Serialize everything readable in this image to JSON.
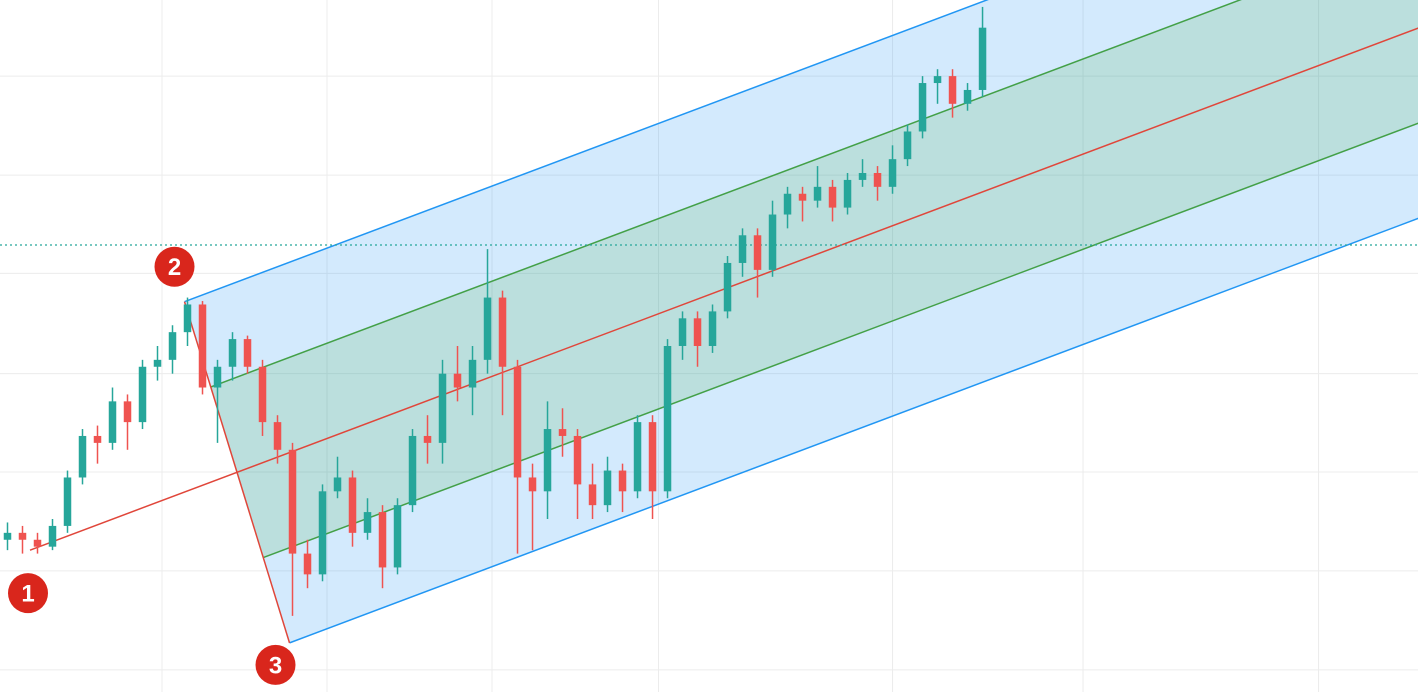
{
  "chart_data": {
    "type": "candlestick",
    "xlim": [
      -0.5,
      94.03
    ],
    "ylim": [
      0,
      100
    ],
    "xticks": [
      10.3,
      21.3,
      32.3,
      43.4,
      59.0,
      71.7,
      87.4
    ],
    "yticks": [
      3.2,
      17.5,
      31.8,
      46,
      60.5,
      74.7,
      89
    ],
    "grid": true,
    "up_color": "#26a69a",
    "down_color": "#ef5350",
    "price_line": {
      "value": 64.6,
      "color": "#26a69a"
    },
    "open": [
      22,
      23,
      22,
      21,
      24,
      31,
      37,
      36,
      42,
      39,
      47,
      48,
      52,
      56,
      44,
      47,
      51,
      47,
      39,
      35,
      20,
      17,
      29,
      31,
      23,
      26,
      18,
      27,
      37,
      36,
      46,
      44,
      48,
      57,
      47,
      31,
      29,
      38,
      37,
      30,
      27,
      32,
      29,
      39,
      29,
      50,
      54,
      50,
      55,
      62,
      66,
      61,
      69,
      72,
      71,
      73,
      70,
      74,
      75,
      73,
      77,
      81,
      88,
      89,
      85,
      87
    ],
    "high": [
      24.5,
      24,
      23,
      25,
      32,
      38,
      38.5,
      44,
      43,
      48,
      50,
      53,
      57,
      56.5,
      48,
      52,
      51.5,
      48,
      40,
      36,
      22,
      30,
      34,
      32,
      28,
      27,
      28,
      38,
      40,
      48,
      50,
      50,
      64,
      58,
      48,
      33,
      42,
      41,
      38,
      33,
      34,
      33,
      40,
      40,
      51,
      55,
      55,
      56,
      63,
      67,
      67,
      71,
      73,
      73,
      76,
      74,
      75,
      77,
      76,
      79,
      82,
      89,
      90,
      90,
      88,
      99
    ],
    "low": [
      20.5,
      20,
      20,
      20.5,
      23,
      30,
      33,
      35,
      35,
      38,
      45,
      46,
      50,
      43,
      36,
      45,
      46,
      37,
      33,
      11,
      15,
      16,
      28,
      21,
      22,
      15,
      17,
      26,
      33,
      33,
      42,
      40,
      46,
      40,
      20,
      20.5,
      25,
      34,
      25,
      25,
      26,
      26,
      28,
      25,
      28,
      48,
      47,
      49,
      54,
      60,
      57,
      60,
      67,
      68,
      70,
      68,
      69,
      73,
      71,
      72,
      76,
      80,
      85,
      83,
      84,
      86
    ],
    "close": [
      23,
      22,
      21,
      24,
      31,
      37,
      36,
      42,
      39,
      47,
      48,
      52,
      56,
      44,
      47,
      51,
      47,
      39,
      35,
      20,
      17,
      29,
      31,
      23,
      26,
      18,
      27,
      37,
      36,
      46,
      44,
      48,
      57,
      47,
      31,
      29,
      38,
      37,
      30,
      27,
      32,
      29,
      39,
      29,
      50,
      54,
      50,
      55,
      62,
      66,
      61,
      69,
      72,
      71,
      73,
      70,
      74,
      75,
      73,
      77,
      81,
      88,
      89,
      85,
      87,
      96
    ],
    "pitchfork": {
      "points": [
        {
          "x": 1.5,
          "y": 20.5,
          "label": "1"
        },
        {
          "x": 11.8,
          "y": 56.4,
          "label": "2"
        },
        {
          "x": 18.8,
          "y": 7.1,
          "label": "3"
        }
      ],
      "median_color": "#e0463a",
      "outer_color": "#2196f3",
      "inner_color": "#43a047",
      "outer_fill": "rgba(33,150,243,0.2)",
      "inner_fill": "rgba(76,175,80,0.18)",
      "marker_color": "#d9261c"
    }
  }
}
